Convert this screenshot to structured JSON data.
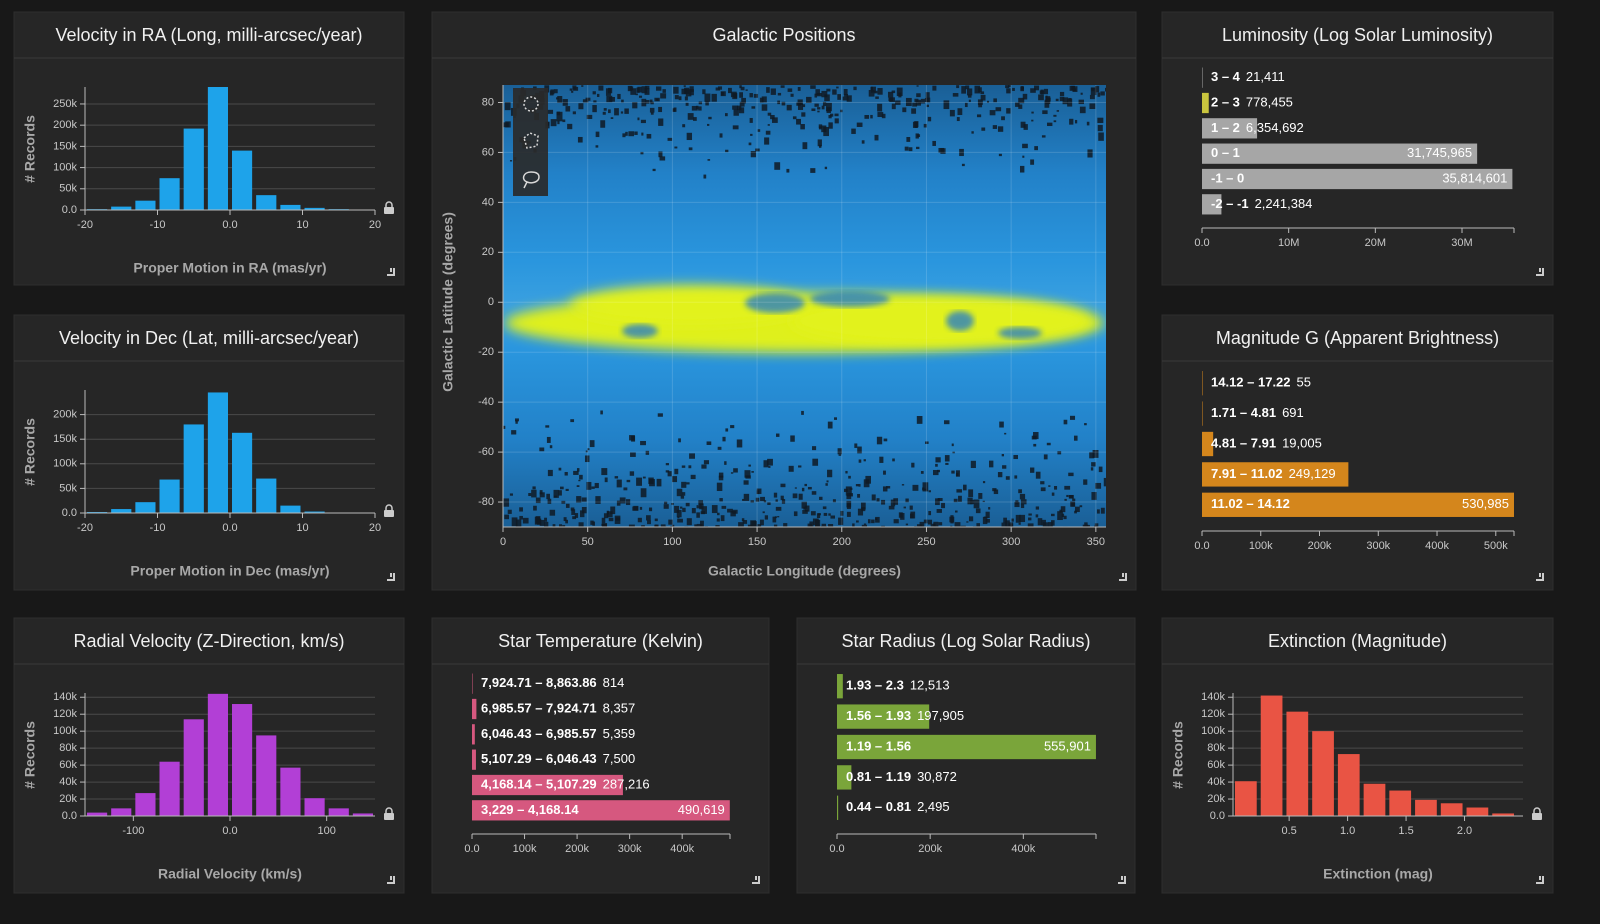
{
  "chart_data": [
    {
      "type": "histogram",
      "title": "Velocity in RA (Long, milli-arcsec/year)",
      "x_label": "Proper Motion in RA (mas/yr)",
      "y_label": "# Records",
      "color": "#1ea3ea",
      "bins": [
        -20,
        -16.67,
        -13.33,
        -10,
        -6.67,
        -3.33,
        0,
        3.33,
        6.67,
        10,
        13.33,
        16.67,
        20
      ],
      "values": [
        2000,
        8000,
        22000,
        75000,
        192000,
        290000,
        140000,
        35000,
        12000,
        5000,
        2000,
        1000
      ],
      "xlim": [
        -20,
        20
      ],
      "xticks": [
        -20,
        -10,
        {
          "value": 0,
          "label": "0.0"
        },
        10,
        20
      ],
      "ylim": [
        0,
        290000
      ],
      "yticks": [
        {
          "value": 0,
          "label": "0.0"
        },
        {
          "value": 50000,
          "label": "50k"
        },
        {
          "value": 100000,
          "label": "100k"
        },
        {
          "value": 150000,
          "label": "150k"
        },
        {
          "value": 200000,
          "label": "200k"
        },
        {
          "value": 250000,
          "label": "250k"
        }
      ],
      "grid": true
    },
    {
      "type": "histogram",
      "title": "Velocity in Dec (Lat, milli-arcsec/year)",
      "x_label": "Proper Motion in Dec (mas/yr)",
      "y_label": "# Records",
      "color": "#1ea3ea",
      "bins": [
        -20,
        -16.67,
        -13.33,
        -10,
        -6.67,
        -3.33,
        0,
        3.33,
        6.67,
        10,
        13.33,
        16.67,
        20
      ],
      "values": [
        2000,
        8000,
        22000,
        68000,
        180000,
        245000,
        163000,
        70000,
        15000,
        3000,
        1000,
        500
      ],
      "xlim": [
        -20,
        20
      ],
      "xticks": [
        -20,
        -10,
        {
          "value": 0,
          "label": "0.0"
        },
        10,
        20
      ],
      "ylim": [
        0,
        250000
      ],
      "yticks": [
        {
          "value": 0,
          "label": "0.0"
        },
        {
          "value": 50000,
          "label": "50k"
        },
        {
          "value": 100000,
          "label": "100k"
        },
        {
          "value": 150000,
          "label": "150k"
        },
        {
          "value": 200000,
          "label": "200k"
        }
      ],
      "grid": true
    },
    {
      "type": "histogram",
      "title": "Radial Velocity (Z-Direction, km/s)",
      "x_label": "Radial Velocity (km/s)",
      "y_label": "# Records",
      "color": "#b23fd6",
      "bins": [
        -150,
        -125,
        -100,
        -75,
        -50,
        -25,
        0,
        25,
        50,
        75,
        100,
        125,
        150
      ],
      "values": [
        4000,
        9000,
        27000,
        64000,
        114000,
        144000,
        132000,
        95000,
        57000,
        21000,
        9000,
        3000
      ],
      "xlim": [
        -150,
        150
      ],
      "xticks": [
        -100,
        {
          "value": 0,
          "label": "0.0"
        },
        100
      ],
      "ylim": [
        0,
        145000
      ],
      "yticks": [
        {
          "value": 0,
          "label": "0.0"
        },
        {
          "value": 20000,
          "label": "20k"
        },
        {
          "value": 40000,
          "label": "40k"
        },
        {
          "value": 60000,
          "label": "60k"
        },
        {
          "value": 80000,
          "label": "80k"
        },
        {
          "value": 100000,
          "label": "100k"
        },
        {
          "value": 120000,
          "label": "120k"
        },
        {
          "value": 140000,
          "label": "140k"
        }
      ],
      "grid": true
    },
    {
      "type": "scatter",
      "title": "Galactic Positions",
      "x_label": "Galactic Longitude (degrees)",
      "y_label": "Galactic Latitude (degrees)",
      "xlim": [
        0,
        356
      ],
      "xticks": [
        0,
        50,
        100,
        150,
        200,
        250,
        300,
        350
      ],
      "ylim": [
        -90,
        87
      ],
      "yticks": [
        -80,
        -60,
        -40,
        -20,
        0,
        20,
        40,
        60,
        80
      ],
      "grid": true
    },
    {
      "type": "row",
      "title": "Luminosity (Log Solar Luminosity)",
      "categories": [
        "3 – 4",
        "2 – 3",
        "1 – 2",
        "0 – 1",
        "-1 – 0",
        "-2 – -1"
      ],
      "values": [
        21411,
        778455,
        6354692,
        31745965,
        35814601,
        2241384
      ],
      "value_labels": [
        "21,411",
        "778,455",
        "6,354,692",
        "31,745,965",
        "35,814,601",
        "2,241,384"
      ],
      "colors": [
        "#a6a6a6",
        "#c9c53e",
        "#a6a6a6",
        "#a6a6a6",
        "#a6a6a6",
        "#a6a6a6"
      ],
      "xlim": [
        0,
        36000000
      ],
      "xticks": [
        {
          "value": 0,
          "label": "0.0"
        },
        {
          "value": 10000000,
          "label": "10M"
        },
        {
          "value": 20000000,
          "label": "20M"
        },
        {
          "value": 30000000,
          "label": "30M"
        }
      ]
    },
    {
      "type": "row",
      "title": "Magnitude G (Apparent Brightness)",
      "categories": [
        "14.12 – 17.22",
        "1.71 – 4.81",
        "4.81 – 7.91",
        "7.91 – 11.02",
        "11.02 – 14.12"
      ],
      "values": [
        55,
        691,
        19005,
        249129,
        530985
      ],
      "value_labels": [
        "55",
        "691",
        "19,005",
        "249,129",
        "530,985"
      ],
      "color": "#d4861c",
      "xlim": [
        0,
        531000
      ],
      "xticks": [
        {
          "value": 0,
          "label": "0.0"
        },
        {
          "value": 100000,
          "label": "100k"
        },
        {
          "value": 200000,
          "label": "200k"
        },
        {
          "value": 300000,
          "label": "300k"
        },
        {
          "value": 400000,
          "label": "400k"
        },
        {
          "value": 500000,
          "label": "500k"
        }
      ]
    },
    {
      "type": "row",
      "title": "Star Temperature (Kelvin)",
      "categories": [
        "7,924.71 – 8,863.86",
        "6,985.57 – 7,924.71",
        "6,046.43 – 6,985.57",
        "5,107.29 – 6,046.43",
        "4,168.14 – 5,107.29",
        "3,229 – 4,168.14"
      ],
      "values": [
        814,
        8357,
        5359,
        7500,
        287216,
        490619
      ],
      "value_labels": [
        "814",
        "8,357",
        "5,359",
        "7,500",
        "287,216",
        "490,619"
      ],
      "color": "#d6587f",
      "xlim": [
        0,
        491000
      ],
      "xticks": [
        {
          "value": 0,
          "label": "0.0"
        },
        {
          "value": 100000,
          "label": "100k"
        },
        {
          "value": 200000,
          "label": "200k"
        },
        {
          "value": 300000,
          "label": "300k"
        },
        {
          "value": 400000,
          "label": "400k"
        }
      ]
    },
    {
      "type": "row",
      "title": "Star Radius (Log Solar Radius)",
      "categories": [
        "1.93 – 2.3",
        "1.56 – 1.93",
        "1.19 – 1.56",
        "0.81 – 1.19",
        "0.44 – 0.81"
      ],
      "values": [
        12513,
        197905,
        555901,
        30872,
        2495
      ],
      "value_labels": [
        "12,513",
        "197,905",
        "555,901",
        "30,872",
        "2,495"
      ],
      "color": "#7aa53a",
      "xlim": [
        0,
        556000
      ],
      "xticks": [
        {
          "value": 0,
          "label": "0.0"
        },
        {
          "value": 200000,
          "label": "200k"
        },
        {
          "value": 400000,
          "label": "400k"
        }
      ]
    },
    {
      "type": "histogram",
      "title": "Extinction (Magnitude)",
      "x_label": "Extinction (mag)",
      "y_label": "# Records",
      "color": "#e95444",
      "bins": [
        0.02,
        0.24,
        0.46,
        0.68,
        0.9,
        1.12,
        1.34,
        1.56,
        1.78,
        2,
        2.22,
        2.44
      ],
      "values": [
        41000,
        142000,
        123000,
        100000,
        73000,
        38000,
        30000,
        19000,
        15000,
        10000,
        3000
      ],
      "xlim": [
        0.02,
        2.5
      ],
      "xticks": [
        0.5,
        {
          "value": 1,
          "label": "1.0"
        },
        1.5,
        {
          "value": 2,
          "label": "2.0"
        }
      ],
      "ylim": [
        0,
        145000
      ],
      "yticks": [
        {
          "value": 0,
          "label": "0.0"
        },
        {
          "value": 20000,
          "label": "20k"
        },
        {
          "value": 40000,
          "label": "40k"
        },
        {
          "value": 60000,
          "label": "60k"
        },
        {
          "value": 80000,
          "label": "80k"
        },
        {
          "value": 100000,
          "label": "100k"
        },
        {
          "value": 120000,
          "label": "120k"
        },
        {
          "value": 140000,
          "label": "140k"
        }
      ],
      "grid": true
    }
  ]
}
